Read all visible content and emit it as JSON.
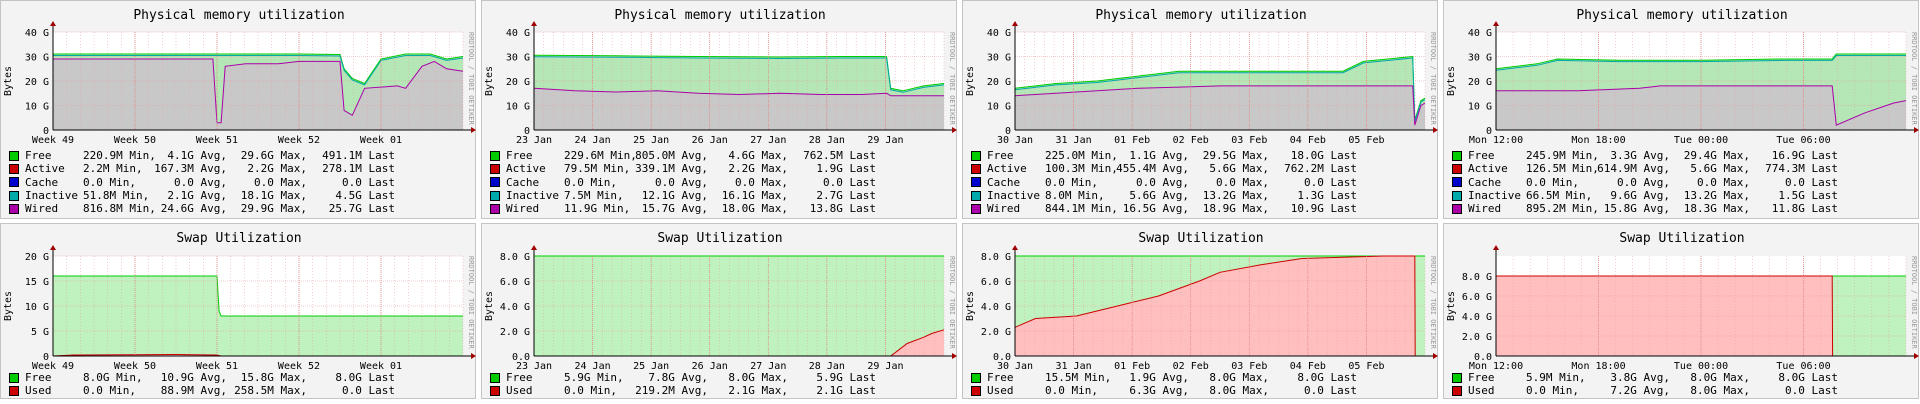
{
  "watermark": "RRDTOOL / TOBI OETIKER",
  "chart_data": [
    {
      "type": "area",
      "title": "Physical memory utilization",
      "ylabel": "Bytes",
      "ylim": [
        0,
        40
      ],
      "yticks": [
        "0",
        "10 G",
        "20 G",
        "30 G",
        "40 G"
      ],
      "xticks": [
        "Week 49",
        "Week 50",
        "Week 51",
        "Week 52",
        "Week 01"
      ],
      "series": [
        {
          "name": "Free",
          "color": "#00cc00",
          "stats": [
            "220.9M Min,",
            "4.1G Avg,",
            "29.6G Max,",
            "491.1M Last"
          ]
        },
        {
          "name": "Active",
          "color": "#cc0000",
          "stats": [
            "2.2M Min,",
            "167.3M Avg,",
            "2.2G Max,",
            "278.1M Last"
          ]
        },
        {
          "name": "Cache",
          "color": "#0000cc",
          "stats": [
            "0.0 Min,",
            "0.0 Avg,",
            "0.0 Max,",
            "0.0 Last"
          ]
        },
        {
          "name": "Inactive",
          "color": "#00aaaa",
          "stats": [
            "51.8M Min,",
            "2.1G Avg,",
            "18.1G Max,",
            "4.5G Last"
          ]
        },
        {
          "name": "Wired",
          "color": "#aa00aa",
          "stats": [
            "816.8M Min,",
            "24.6G Avg,",
            "29.9G Max,",
            "25.7G Last"
          ]
        }
      ],
      "total": [
        [
          0,
          31
        ],
        [
          0.2,
          31
        ],
        [
          0.39,
          31
        ],
        [
          0.4,
          31
        ],
        [
          0.5,
          31
        ],
        [
          0.6,
          31
        ],
        [
          0.7,
          30.8
        ],
        [
          0.71,
          25
        ],
        [
          0.73,
          21
        ],
        [
          0.76,
          19
        ],
        [
          0.8,
          29
        ],
        [
          0.86,
          31
        ],
        [
          0.92,
          31
        ],
        [
          0.96,
          29
        ],
        [
          1,
          30
        ]
      ],
      "wired": [
        [
          0,
          29
        ],
        [
          0.2,
          29
        ],
        [
          0.39,
          29
        ],
        [
          0.4,
          3
        ],
        [
          0.41,
          3
        ],
        [
          0.42,
          26
        ],
        [
          0.47,
          27
        ],
        [
          0.55,
          27
        ],
        [
          0.6,
          28
        ],
        [
          0.7,
          28
        ],
        [
          0.71,
          8
        ],
        [
          0.73,
          6
        ],
        [
          0.76,
          17
        ],
        [
          0.84,
          18
        ],
        [
          0.86,
          17
        ],
        [
          0.9,
          26
        ],
        [
          0.93,
          28
        ],
        [
          0.96,
          25
        ],
        [
          1,
          24
        ]
      ]
    },
    {
      "type": "area",
      "title": "Physical memory utilization",
      "ylabel": "Bytes",
      "ylim": [
        0,
        40
      ],
      "yticks": [
        "0",
        "10 G",
        "20 G",
        "30 G",
        "40 G"
      ],
      "xticks": [
        "23 Jan",
        "24 Jan",
        "25 Jan",
        "26 Jan",
        "27 Jan",
        "28 Jan",
        "29 Jan"
      ],
      "series": [
        {
          "name": "Free",
          "color": "#00cc00",
          "stats": [
            "229.6M Min,",
            "805.0M Avg,",
            "4.6G Max,",
            "762.5M Last"
          ]
        },
        {
          "name": "Active",
          "color": "#cc0000",
          "stats": [
            "79.5M Min,",
            "339.1M Avg,",
            "2.2G Max,",
            "1.9G Last"
          ]
        },
        {
          "name": "Cache",
          "color": "#0000cc",
          "stats": [
            "0.0 Min,",
            "0.0 Avg,",
            "0.0 Max,",
            "0.0 Last"
          ]
        },
        {
          "name": "Inactive",
          "color": "#00aaaa",
          "stats": [
            "7.5M Min,",
            "12.1G Avg,",
            "16.1G Max,",
            "2.7G Last"
          ]
        },
        {
          "name": "Wired",
          "color": "#aa00aa",
          "stats": [
            "11.9G Min,",
            "15.7G Avg,",
            "18.0G Max,",
            "13.8G Last"
          ]
        }
      ],
      "total": [
        [
          0,
          30.5
        ],
        [
          0.2,
          30.3
        ],
        [
          0.4,
          30
        ],
        [
          0.6,
          29.8
        ],
        [
          0.75,
          30
        ],
        [
          0.86,
          30
        ],
        [
          0.87,
          17
        ],
        [
          0.9,
          16
        ],
        [
          0.95,
          18
        ],
        [
          1,
          19
        ]
      ],
      "wired": [
        [
          0,
          17
        ],
        [
          0.1,
          16
        ],
        [
          0.2,
          15.5
        ],
        [
          0.3,
          16
        ],
        [
          0.4,
          15
        ],
        [
          0.5,
          14.5
        ],
        [
          0.6,
          15
        ],
        [
          0.7,
          14.5
        ],
        [
          0.8,
          14.5
        ],
        [
          0.86,
          15
        ],
        [
          0.87,
          14
        ],
        [
          0.95,
          14
        ],
        [
          1,
          14
        ]
      ]
    },
    {
      "type": "area",
      "title": "Physical memory utilization",
      "ylabel": "Bytes",
      "ylim": [
        0,
        40
      ],
      "yticks": [
        "0",
        "10 G",
        "20 G",
        "30 G",
        "40 G"
      ],
      "xticks": [
        "30 Jan",
        "31 Jan",
        "01 Feb",
        "02 Feb",
        "03 Feb",
        "04 Feb",
        "05 Feb"
      ],
      "series": [
        {
          "name": "Free",
          "color": "#00cc00",
          "stats": [
            "225.0M Min,",
            "1.1G Avg,",
            "29.5G Max,",
            "18.0G Last"
          ]
        },
        {
          "name": "Active",
          "color": "#cc0000",
          "stats": [
            "100.3M Min,",
            "455.4M Avg,",
            "5.6G Max,",
            "762.2M Last"
          ]
        },
        {
          "name": "Cache",
          "color": "#0000cc",
          "stats": [
            "0.0 Min,",
            "0.0 Avg,",
            "0.0 Max,",
            "0.0 Last"
          ]
        },
        {
          "name": "Inactive",
          "color": "#00aaaa",
          "stats": [
            "8.0M Min,",
            "5.6G Avg,",
            "13.2G Max,",
            "1.3G Last"
          ]
        },
        {
          "name": "Wired",
          "color": "#aa00aa",
          "stats": [
            "844.1M Min,",
            "16.5G Avg,",
            "18.9G Max,",
            "10.9G Last"
          ]
        }
      ],
      "total": [
        [
          0,
          17
        ],
        [
          0.1,
          19
        ],
        [
          0.2,
          20
        ],
        [
          0.3,
          22
        ],
        [
          0.4,
          24
        ],
        [
          0.5,
          24
        ],
        [
          0.6,
          24
        ],
        [
          0.7,
          24
        ],
        [
          0.8,
          24
        ],
        [
          0.85,
          28
        ],
        [
          0.97,
          30
        ],
        [
          0.975,
          4
        ],
        [
          0.99,
          12
        ],
        [
          1,
          13
        ]
      ],
      "wired": [
        [
          0,
          14
        ],
        [
          0.1,
          15
        ],
        [
          0.2,
          16
        ],
        [
          0.3,
          17
        ],
        [
          0.4,
          17.5
        ],
        [
          0.5,
          18
        ],
        [
          0.6,
          18
        ],
        [
          0.7,
          18
        ],
        [
          0.8,
          18
        ],
        [
          0.85,
          18
        ],
        [
          0.97,
          18
        ],
        [
          0.975,
          2
        ],
        [
          0.99,
          10
        ],
        [
          1,
          11
        ]
      ]
    },
    {
      "type": "area",
      "title": "Physical memory utilization",
      "ylabel": "Bytes",
      "ylim": [
        0,
        40
      ],
      "yticks": [
        "0",
        "10 G",
        "20 G",
        "30 G",
        "40 G"
      ],
      "xticks": [
        "Mon 12:00",
        "Mon 18:00",
        "Tue 00:00",
        "Tue 06:00"
      ],
      "series": [
        {
          "name": "Free",
          "color": "#00cc00",
          "stats": [
            "245.9M Min,",
            "3.3G Avg,",
            "29.4G Max,",
            "16.9G Last"
          ]
        },
        {
          "name": "Active",
          "color": "#cc0000",
          "stats": [
            "126.5M Min,",
            "614.9M Avg,",
            "5.6G Max,",
            "774.3M Last"
          ]
        },
        {
          "name": "Cache",
          "color": "#0000cc",
          "stats": [
            "0.0 Min,",
            "0.0 Avg,",
            "0.0 Max,",
            "0.0 Last"
          ]
        },
        {
          "name": "Inactive",
          "color": "#00aaaa",
          "stats": [
            "66.5M Min,",
            "9.6G Avg,",
            "13.2G Max,",
            "1.5G Last"
          ]
        },
        {
          "name": "Wired",
          "color": "#aa00aa",
          "stats": [
            "895.2M Min,",
            "15.8G Avg,",
            "18.3G Max,",
            "11.8G Last"
          ]
        }
      ],
      "total": [
        [
          0,
          25
        ],
        [
          0.1,
          27
        ],
        [
          0.15,
          29
        ],
        [
          0.3,
          28.5
        ],
        [
          0.5,
          28.5
        ],
        [
          0.7,
          29
        ],
        [
          0.82,
          29
        ],
        [
          0.83,
          31
        ],
        [
          0.99,
          31
        ],
        [
          1,
          31
        ]
      ],
      "wired": [
        [
          0,
          16
        ],
        [
          0.2,
          16
        ],
        [
          0.35,
          17
        ],
        [
          0.4,
          18
        ],
        [
          0.6,
          18
        ],
        [
          0.82,
          18
        ],
        [
          0.83,
          2
        ],
        [
          0.9,
          7
        ],
        [
          0.97,
          11
        ],
        [
          1,
          12
        ]
      ]
    },
    {
      "type": "area",
      "title": "Swap Utilization",
      "ylabel": "Bytes",
      "ylim": [
        0,
        20
      ],
      "yticks": [
        "0",
        "5 G",
        "10 G",
        "15 G",
        "20 G"
      ],
      "xticks": [
        "Week 49",
        "Week 50",
        "Week 51",
        "Week 52",
        "Week 01"
      ],
      "series": [
        {
          "name": "Free",
          "color": "#00cc00",
          "stats": [
            "8.0G Min,",
            "10.9G Avg,",
            "15.8G Max,",
            "8.0G Last"
          ]
        },
        {
          "name": "Used",
          "color": "#cc0000",
          "stats": [
            "0.0 Min,",
            "88.9M Avg,",
            "258.5M Max,",
            "0.0 Last"
          ]
        }
      ],
      "total": [
        [
          0,
          16
        ],
        [
          0.4,
          16
        ],
        [
          0.405,
          9
        ],
        [
          0.41,
          8
        ],
        [
          1,
          8
        ]
      ],
      "used": [
        [
          0,
          0
        ],
        [
          0.05,
          0.2
        ],
        [
          0.3,
          0.3
        ],
        [
          0.4,
          0.2
        ],
        [
          0.41,
          0
        ],
        [
          1,
          0
        ]
      ]
    },
    {
      "type": "area",
      "title": "Swap Utilization",
      "ylabel": "Bytes",
      "ylim": [
        0,
        8
      ],
      "yticks": [
        "0.0",
        "2.0 G",
        "4.0 G",
        "6.0 G",
        "8.0 G"
      ],
      "xticks": [
        "23 Jan",
        "24 Jan",
        "25 Jan",
        "26 Jan",
        "27 Jan",
        "28 Jan",
        "29 Jan"
      ],
      "series": [
        {
          "name": "Free",
          "color": "#00cc00",
          "stats": [
            "5.9G Min,",
            "7.8G Avg,",
            "8.0G Max,",
            "5.9G Last"
          ]
        },
        {
          "name": "Used",
          "color": "#cc0000",
          "stats": [
            "0.0 Min,",
            "219.2M Avg,",
            "2.1G Max,",
            "2.1G Last"
          ]
        }
      ],
      "total": [
        [
          0,
          8
        ],
        [
          1,
          8
        ]
      ],
      "used": [
        [
          0,
          0
        ],
        [
          0.87,
          0
        ],
        [
          0.89,
          0.5
        ],
        [
          0.91,
          1
        ],
        [
          0.95,
          1.5
        ],
        [
          0.97,
          1.8
        ],
        [
          1,
          2.1
        ]
      ]
    },
    {
      "type": "area",
      "title": "Swap Utilization",
      "ylabel": "Bytes",
      "ylim": [
        0,
        8
      ],
      "yticks": [
        "0.0",
        "2.0 G",
        "4.0 G",
        "6.0 G",
        "8.0 G"
      ],
      "xticks": [
        "30 Jan",
        "31 Jan",
        "01 Feb",
        "02 Feb",
        "03 Feb",
        "04 Feb",
        "05 Feb"
      ],
      "series": [
        {
          "name": "Free",
          "color": "#00cc00",
          "stats": [
            "15.5M Min,",
            "1.9G Avg,",
            "8.0G Max,",
            "8.0G Last"
          ]
        },
        {
          "name": "Used",
          "color": "#cc0000",
          "stats": [
            "0.0 Min,",
            "6.3G Avg,",
            "8.0G Max,",
            "0.0 Last"
          ]
        }
      ],
      "total": [
        [
          0,
          8
        ],
        [
          0.975,
          8
        ],
        [
          1,
          8
        ]
      ],
      "used": [
        [
          0,
          2.3
        ],
        [
          0.05,
          3
        ],
        [
          0.15,
          3.2
        ],
        [
          0.25,
          4
        ],
        [
          0.35,
          4.8
        ],
        [
          0.45,
          6
        ],
        [
          0.5,
          6.7
        ],
        [
          0.6,
          7.3
        ],
        [
          0.7,
          7.8
        ],
        [
          0.8,
          7.9
        ],
        [
          0.9,
          8
        ],
        [
          0.975,
          8
        ],
        [
          0.976,
          0
        ],
        [
          1,
          0
        ]
      ]
    },
    {
      "type": "area",
      "title": "Swap Utilization",
      "ylabel": "Bytes",
      "ylim": [
        0,
        10
      ],
      "yticks": [
        "0.0",
        "2.0 G",
        "4.0 G",
        "6.0 G",
        "8.0 G"
      ],
      "xticks": [
        "Mon 12:00",
        "Mon 18:00",
        "Tue 00:00",
        "Tue 06:00"
      ],
      "series": [
        {
          "name": "Free",
          "color": "#00cc00",
          "stats": [
            "5.9M Min,",
            "3.8G Avg,",
            "8.0G Max,",
            "8.0G Last"
          ]
        },
        {
          "name": "Used",
          "color": "#cc0000",
          "stats": [
            "0.0 Min,",
            "7.2G Avg,",
            "8.0G Max,",
            "0.0 Last"
          ]
        }
      ],
      "total": [
        [
          0,
          8
        ],
        [
          1,
          8
        ]
      ],
      "used": [
        [
          0,
          8
        ],
        [
          0.82,
          8
        ],
        [
          0.821,
          0
        ],
        [
          1,
          0
        ]
      ]
    }
  ]
}
